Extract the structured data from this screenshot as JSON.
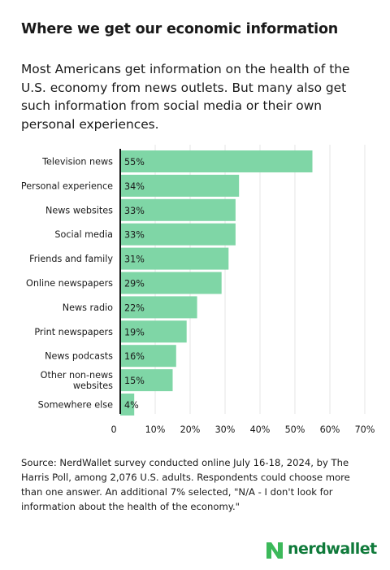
{
  "header": {
    "title": "Where we get our economic information",
    "subtitle": "Most Americans get information on the health of the U.S. economy from news outlets. But many also get such information from social media or their own personal experiences."
  },
  "chart_data": {
    "type": "bar",
    "orientation": "horizontal",
    "categories": [
      "Television news",
      "Personal experience",
      "News websites",
      "Social media",
      "Friends and family",
      "Online newspapers",
      "News radio",
      "Print newspapers",
      "News podcasts",
      "Other non-news websites",
      "Somewhere else"
    ],
    "values": [
      55,
      34,
      33,
      33,
      31,
      29,
      22,
      19,
      16,
      15,
      4
    ],
    "value_labels": [
      "55%",
      "34%",
      "33%",
      "33%",
      "31%",
      "29%",
      "22%",
      "19%",
      "16%",
      "15%",
      "4%"
    ],
    "xlim": [
      0,
      70
    ],
    "x_ticks": [
      0,
      10,
      20,
      30,
      40,
      50,
      60,
      70
    ],
    "x_tick_labels": [
      "0",
      "10%",
      "20%",
      "30%",
      "40%",
      "50%",
      "60%",
      "70%"
    ],
    "grid": true,
    "bar_color": "#7fd6a6"
  },
  "footer": {
    "source": "Source: NerdWallet survey conducted online July 16-18, 2024, by The Harris Poll, among 2,076 U.S. adults. Respondents could choose more than one answer. An additional 7% selected, \"N/A - I don't look for information about the health of the economy.\"",
    "logo_text": "nerdwallet",
    "logo_color": "#0f7a3a",
    "logo_mark_color": "#3cb95a"
  }
}
